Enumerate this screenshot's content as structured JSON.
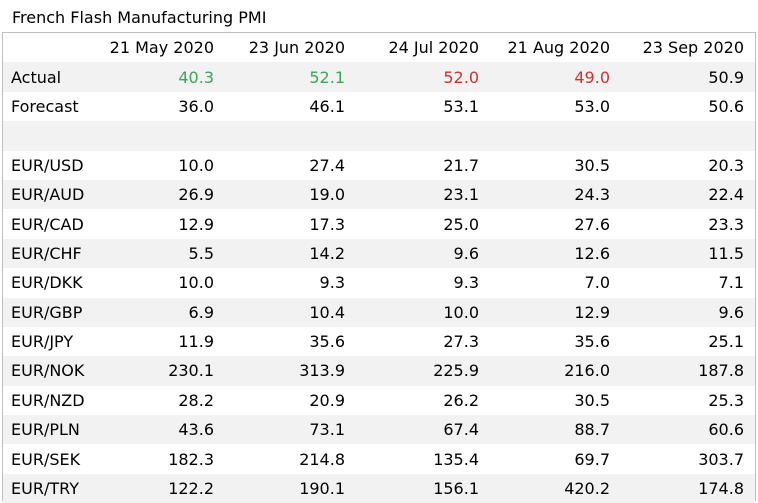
{
  "title": "French Flash Manufacturing PMI",
  "colors": {
    "up": "#3aa65a",
    "down": "#cc3333",
    "row_shade": "#f2f2f2",
    "border": "#bfbfbf"
  },
  "chart_data": {
    "type": "table",
    "title": "French Flash Manufacturing PMI",
    "columns": [
      "21 May 2020",
      "23 Jun 2020",
      "24 Jul 2020",
      "21 Aug 2020",
      "23 Sep 2020"
    ],
    "rows": [
      {
        "label": "Actual",
        "values": [
          "40.3",
          "52.1",
          "52.0",
          "49.0",
          "50.9"
        ],
        "colors": [
          "up",
          "up",
          "down",
          "down",
          "none"
        ]
      },
      {
        "label": "Forecast",
        "values": [
          "36.0",
          "46.1",
          "53.1",
          "53.0",
          "50.6"
        ]
      },
      {
        "label": "",
        "values": [
          "",
          "",
          "",
          "",
          ""
        ]
      },
      {
        "label": "EUR/USD",
        "values": [
          "10.0",
          "27.4",
          "21.7",
          "30.5",
          "20.3"
        ]
      },
      {
        "label": "EUR/AUD",
        "values": [
          "26.9",
          "19.0",
          "23.1",
          "24.3",
          "22.4"
        ]
      },
      {
        "label": "EUR/CAD",
        "values": [
          "12.9",
          "17.3",
          "25.0",
          "27.6",
          "23.3"
        ]
      },
      {
        "label": "EUR/CHF",
        "values": [
          "5.5",
          "14.2",
          "9.6",
          "12.6",
          "11.5"
        ]
      },
      {
        "label": "EUR/DKK",
        "values": [
          "10.0",
          "9.3",
          "9.3",
          "7.0",
          "7.1"
        ]
      },
      {
        "label": "EUR/GBP",
        "values": [
          "6.9",
          "10.4",
          "10.0",
          "12.9",
          "9.6"
        ]
      },
      {
        "label": "EUR/JPY",
        "values": [
          "11.9",
          "35.6",
          "27.3",
          "35.6",
          "25.1"
        ]
      },
      {
        "label": "EUR/NOK",
        "values": [
          "230.1",
          "313.9",
          "225.9",
          "216.0",
          "187.8"
        ]
      },
      {
        "label": "EUR/NZD",
        "values": [
          "28.2",
          "20.9",
          "26.2",
          "30.5",
          "25.3"
        ]
      },
      {
        "label": "EUR/PLN",
        "values": [
          "43.6",
          "73.1",
          "67.4",
          "88.7",
          "60.6"
        ]
      },
      {
        "label": "EUR/SEK",
        "values": [
          "182.3",
          "214.8",
          "135.4",
          "69.7",
          "303.7"
        ]
      },
      {
        "label": "EUR/TRY",
        "values": [
          "122.2",
          "190.1",
          "156.1",
          "420.2",
          "174.8"
        ]
      }
    ]
  }
}
